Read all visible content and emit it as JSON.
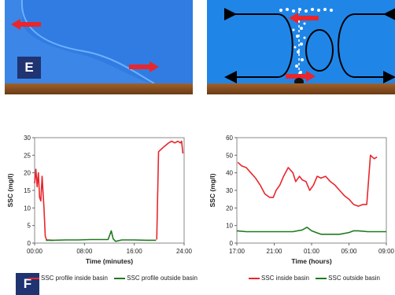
{
  "labels": {
    "panel_e": "E",
    "panel_f": "F"
  },
  "colors": {
    "inside": "#e8262c",
    "outside": "#1e7a1e",
    "arrow": "#e8262c"
  },
  "chart_data": [
    {
      "type": "line",
      "xlabel": "Time (minutes)",
      "ylabel": "SSC (mg/l)",
      "x_ticks": [
        "00:00",
        "08:00",
        "16:00",
        "24:00"
      ],
      "xlim": [
        0,
        24
      ],
      "ylim": [
        0,
        30
      ],
      "y_ticks": [
        0,
        5,
        10,
        15,
        20,
        25,
        30
      ],
      "series": [
        {
          "name": "SSC profile inside basin",
          "color": "#e8262c",
          "x": [
            0.0,
            0.2,
            0.4,
            0.6,
            0.8,
            1.0,
            1.2,
            1.5,
            1.7,
            1.9,
            2.1,
            2.3,
            2.6,
            3.0
          ],
          "y": [
            17,
            21,
            16,
            20,
            13,
            12,
            19,
            10,
            2,
            1,
            0.8,
            0.9,
            0.8,
            0.8
          ]
        },
        {
          "name": "SSC profile outside basin",
          "color": "#1e7a1e",
          "x": [
            1.8,
            3,
            5,
            7,
            9,
            10.5,
            11.8,
            12.3,
            12.6,
            13.0,
            14,
            16,
            18,
            19.5
          ],
          "y": [
            0.8,
            0.8,
            0.9,
            0.9,
            1.0,
            1.0,
            1.0,
            3.5,
            1.2,
            0.5,
            0.9,
            0.9,
            0.8,
            0.8
          ]
        },
        {
          "name": "SSC profile inside basin",
          "color": "#e8262c",
          "x": [
            19.6,
            19.9,
            20.2,
            20.8,
            21.5,
            22,
            22.5,
            23,
            23.4,
            23.6,
            23.8
          ],
          "y": [
            1,
            26,
            26.5,
            27.5,
            28.5,
            29,
            28.5,
            29,
            28.5,
            29,
            25.5
          ]
        }
      ],
      "legend": [
        {
          "label": "SSC profile inside basin",
          "color": "#e8262c"
        },
        {
          "label": "SSC profile outside basin",
          "color": "#1e7a1e"
        }
      ]
    },
    {
      "type": "line",
      "xlabel": "Time (hours)",
      "ylabel": "SSC (mg/l)",
      "x_ticks": [
        "17:00",
        "21:00",
        "01:00",
        "05:00",
        "09:00"
      ],
      "xlim": [
        0,
        16
      ],
      "ylim": [
        0,
        60
      ],
      "y_ticks": [
        0,
        10,
        20,
        30,
        40,
        50,
        60
      ],
      "series": [
        {
          "name": "SSC inside basin",
          "color": "#e8262c",
          "x": [
            0.1,
            0.5,
            1.0,
            1.5,
            2.0,
            2.5,
            3.0,
            3.5,
            3.9,
            4.2,
            4.6,
            5.0,
            5.5,
            6.0,
            6.3,
            6.7,
            7.0,
            7.4,
            7.8,
            8.2,
            8.6,
            9.0,
            9.5,
            10.0,
            10.5,
            11.0,
            11.5,
            12.0,
            12.5,
            13.0,
            13.5,
            13.9,
            14.3,
            14.7,
            15.0
          ],
          "y": [
            46,
            44,
            43,
            40,
            37,
            33,
            28,
            26,
            26,
            30,
            33,
            38,
            43,
            40,
            35,
            38,
            36,
            35,
            30,
            33,
            38,
            37,
            38,
            35,
            33,
            30,
            27,
            25,
            22,
            21,
            22,
            22,
            50,
            48,
            49
          ]
        },
        {
          "name": "SSC outside basin",
          "color": "#1e7a1e",
          "x": [
            0,
            1,
            2,
            3,
            4,
            5,
            6,
            7,
            7.5,
            8,
            8.5,
            9,
            10,
            11,
            12,
            12.5,
            13,
            14,
            15,
            16
          ],
          "y": [
            7,
            6.5,
            6.5,
            6.5,
            6.5,
            6.5,
            6.5,
            7.5,
            9,
            7,
            6,
            5,
            5,
            5,
            6,
            7,
            7,
            6.5,
            6.5,
            6.5
          ]
        }
      ],
      "legend": [
        {
          "label": "SSC inside basin",
          "color": "#e8262c"
        },
        {
          "label": "SSC outside basin",
          "color": "#1e7a1e"
        }
      ]
    }
  ]
}
